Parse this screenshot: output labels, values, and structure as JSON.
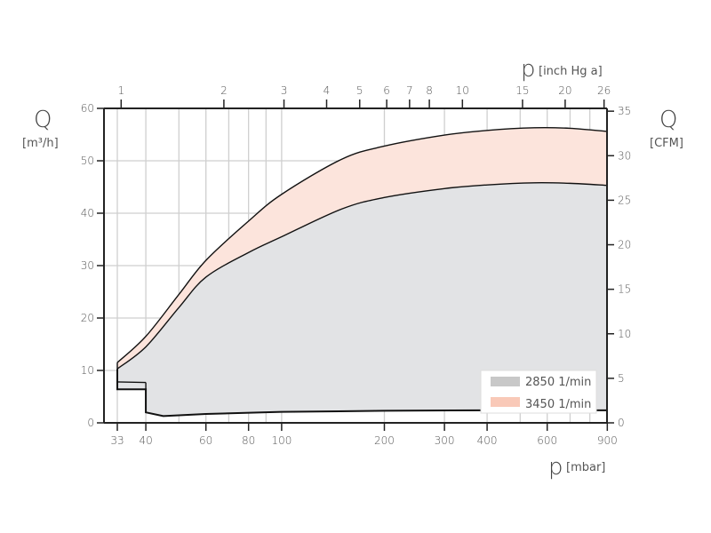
{
  "chart_data": {
    "type": "area",
    "x_scale": "log",
    "xlim": [
      33,
      900
    ],
    "ylim": [
      0,
      60
    ],
    "grid": true,
    "xlabel": {
      "symbol": "p",
      "unit": "[mbar]"
    },
    "x2label": {
      "symbol": "p",
      "unit": "[inch Hg a]"
    },
    "ylabel": {
      "symbol": "Q",
      "unit": "[m³/h]"
    },
    "y2label": {
      "symbol": "Q",
      "unit": "[CFM]"
    },
    "x_ticks": [
      33,
      40,
      60,
      80,
      100,
      200,
      300,
      400,
      600,
      900
    ],
    "x_grid": [
      33,
      40,
      50,
      60,
      70,
      80,
      90,
      100,
      200,
      300,
      400,
      500,
      600,
      700,
      800,
      900
    ],
    "x2_ticks": [
      1,
      2,
      3,
      4,
      5,
      6,
      7,
      8,
      10,
      15,
      20,
      26
    ],
    "x2_factor_mbar_per_unit": 33.864,
    "y_ticks": [
      0,
      10,
      20,
      30,
      40,
      50,
      60
    ],
    "y2_ticks": [
      0,
      5,
      10,
      15,
      20,
      25,
      30,
      35
    ],
    "y2_factor_m3h_per_unit": 1.699,
    "legend_position": "bottom-right",
    "series": [
      {
        "name": "3450 1/min",
        "color": "#f9c9b8",
        "fill": "#fce4dc",
        "x": [
          33,
          40,
          50,
          60,
          80,
          100,
          150,
          200,
          300,
          400,
          550,
          700,
          900
        ],
        "y": [
          11.5,
          16.5,
          24.5,
          31.0,
          38.5,
          43.6,
          50.3,
          52.8,
          54.9,
          55.8,
          56.3,
          56.2,
          55.6
        ]
      },
      {
        "name": "2850 1/min",
        "color": "#c8c8c8",
        "fill": "#e2e3e5",
        "x": [
          33,
          40,
          50,
          60,
          80,
          100,
          150,
          200,
          300,
          400,
          550,
          700,
          900
        ],
        "y": [
          10.3,
          14.5,
          22.0,
          27.8,
          32.5,
          35.5,
          40.8,
          43.0,
          44.7,
          45.4,
          45.8,
          45.7,
          45.3
        ]
      }
    ],
    "lower_boundary": {
      "x": [
        33,
        33,
        40,
        40,
        45,
        60,
        100,
        200,
        400,
        900
      ],
      "y": [
        10.3,
        6.4,
        6.4,
        2.0,
        1.3,
        1.7,
        2.1,
        2.3,
        2.4,
        2.4
      ]
    },
    "inner_line": {
      "x": [
        33,
        40
      ],
      "y": [
        7.8,
        7.7
      ]
    }
  }
}
